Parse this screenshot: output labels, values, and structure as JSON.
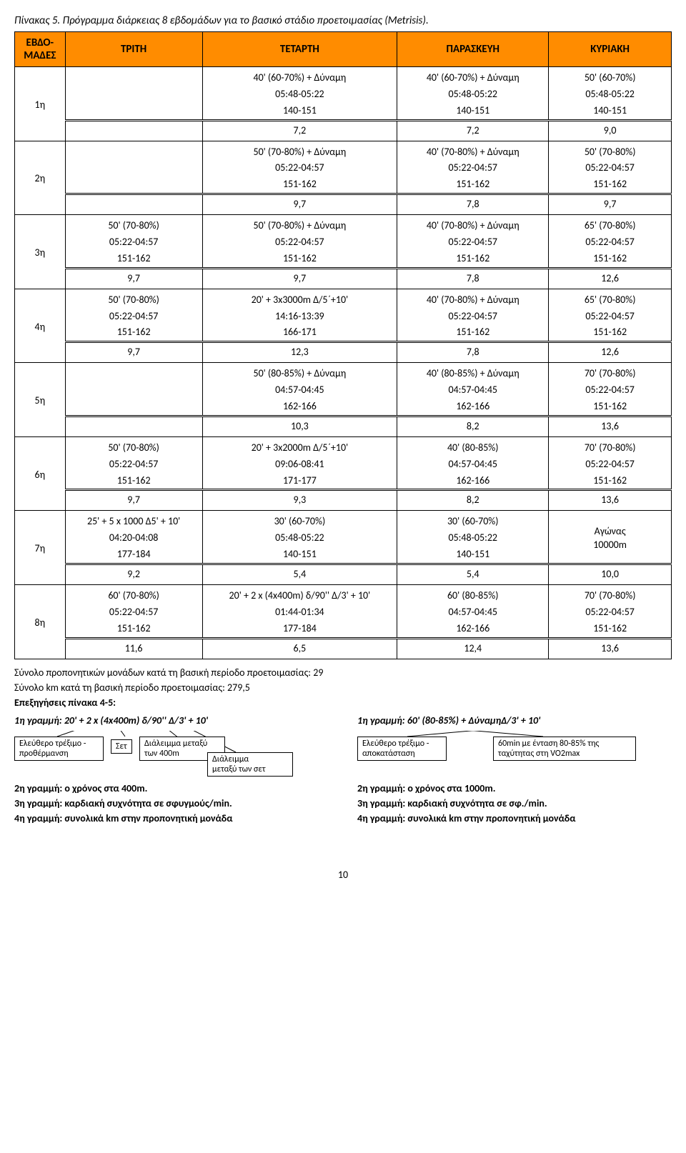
{
  "caption": "Πίνακας 5. Πρόγραμμα διάρκειας 8 εβδομάδων για το βασικό στάδιο προετοιμασίας (Metrisis).",
  "headers": [
    "ΕΒΔΟ-\nΜΑΔΕΣ",
    "ΤΡΙΤΗ",
    "ΤΕΤΑΡΤΗ",
    "ΠΑΡΑΣΚΕΥΗ",
    "ΚΥΡΙΑΚΗ"
  ],
  "colors": {
    "header_bg": "#ff8c00"
  },
  "weeks": [
    {
      "label": "1η",
      "rows": [
        [
          "",
          "40' (60-70%) + Δύναμη",
          "40' (60-70%) + Δύναμη",
          "50' (60-70%)"
        ],
        [
          "",
          "05:48-05:22",
          "05:48-05:22",
          "05:48-05:22"
        ],
        [
          "",
          "140-151",
          "140-151",
          "140-151"
        ]
      ],
      "summary": [
        "",
        "7,2",
        "7,2",
        "9,0"
      ]
    },
    {
      "label": "2η",
      "rows": [
        [
          "",
          "50' (70-80%) + Δύναμη",
          "40' (70-80%) + Δύναμη",
          "50' (70-80%)"
        ],
        [
          "",
          "05:22-04:57",
          "05:22-04:57",
          "05:22-04:57"
        ],
        [
          "",
          "151-162",
          "151-162",
          "151-162"
        ]
      ],
      "summary": [
        "",
        "9,7",
        "7,8",
        "9,7"
      ]
    },
    {
      "label": "3η",
      "rows": [
        [
          "50' (70-80%)",
          "50' (70-80%) + Δύναμη",
          "40' (70-80%) + Δύναμη",
          "65' (70-80%)"
        ],
        [
          "05:22-04:57",
          "05:22-04:57",
          "05:22-04:57",
          "05:22-04:57"
        ],
        [
          "151-162",
          "151-162",
          "151-162",
          "151-162"
        ]
      ],
      "summary": [
        "9,7",
        "9,7",
        "7,8",
        "12,6"
      ]
    },
    {
      "label": "4η",
      "rows": [
        [
          "50' (70-80%)",
          "20' + 3x3000m Δ/5΄+10'",
          "40' (70-80%) + Δύναμη",
          "65' (70-80%)"
        ],
        [
          "05:22-04:57",
          "14:16-13:39",
          "05:22-04:57",
          "05:22-04:57"
        ],
        [
          "151-162",
          "166-171",
          "151-162",
          "151-162"
        ]
      ],
      "summary": [
        "9,7",
        "12,3",
        "7,8",
        "12,6"
      ]
    },
    {
      "label": "5η",
      "rows": [
        [
          "",
          "50' (80-85%) + Δύναμη",
          "40' (80-85%) + Δύναμη",
          "70' (70-80%)"
        ],
        [
          "",
          "04:57-04:45",
          "04:57-04:45",
          "05:22-04:57"
        ],
        [
          "",
          "162-166",
          "162-166",
          "151-162"
        ]
      ],
      "summary": [
        "",
        "10,3",
        "8,2",
        "13,6"
      ]
    },
    {
      "label": "6η",
      "rows": [
        [
          "50' (70-80%)",
          "20' + 3x2000m Δ/5΄+10'",
          "40' (80-85%)",
          "70' (70-80%)"
        ],
        [
          "05:22-04:57",
          "09:06-08:41",
          "04:57-04:45",
          "05:22-04:57"
        ],
        [
          "151-162",
          "171-177",
          "162-166",
          "151-162"
        ]
      ],
      "summary": [
        "9,7",
        "9,3",
        "8,2",
        "13,6"
      ]
    },
    {
      "label": "7η",
      "rows": [
        [
          "25' + 5 x 1000 Δ5' + 10'",
          "30' (60-70%)",
          "30' (60-70%)",
          "Αγώνας\n10000m"
        ],
        [
          "04:20-04:08",
          "05:48-05:22",
          "05:48-05:22",
          ""
        ],
        [
          "177-184",
          "140-151",
          "140-151",
          ""
        ]
      ],
      "summary": [
        "9,2",
        "5,4",
        "5,4",
        "10,0"
      ]
    },
    {
      "label": "8η",
      "rows": [
        [
          "60' (70-80%)",
          "20' + 2 x (4x400m) δ/90'' Δ/3' + 10'",
          "60' (80-85%)",
          "70' (70-80%)"
        ],
        [
          "05:22-04:57",
          "01:44-01:34",
          "04:57-04:45",
          "05:22-04:57"
        ],
        [
          "151-162",
          "177-184",
          "162-166",
          "151-162"
        ]
      ],
      "summary": [
        "11,6",
        "6,5",
        "12,4",
        "13,6"
      ]
    }
  ],
  "below": {
    "line1": "Σύνολο προπονητικών μονάδων κατά τη βασική περίοδο προετοιμασίας: 29",
    "line2": "Σύνολο km κατά τη βασική περίοδο προετοιμασίας: 279,5",
    "heading": "Επεξηγήσεις πίνακα 4-5:",
    "left_first": "1η γραμμή: 20' + 2 x (4x400m) δ/90'' Δ/3' + 10'",
    "right_first": "1η γραμμή: 60' (80-85%) + ΔύναμηΔ/3' + 10'",
    "boxes_left": {
      "b1": "Ελεύθερο τρέξιμο -\nπροθέρμανση",
      "b2": "Σετ",
      "b3": "Διάλειμμα μεταξύ\nτων 400m",
      "b4": "Διάλειμμα\nμεταξύ των σετ"
    },
    "boxes_right": {
      "b1": "Ελεύθερο τρέξιμο -\nαποκατάσταση",
      "b2": "60min με ένταση 80-85% της\nταχύτητας στη VO2max"
    },
    "left_lines": [
      "2η γραμμή: ο χρόνος στα 400m.",
      "3η γραμμή: καρδιακή συχνότητα σε σφυγμούς/min.",
      "4η γραμμή: συνολικά km στην προπονητική μονάδα"
    ],
    "right_lines": [
      "2η γραμμή: ο χρόνος στα 1000m.",
      "3η γραμμή: καρδιακή συχνότητα σε σφ./min.",
      "4η γραμμή: συνολικά km στην προπονητική μονάδα"
    ]
  },
  "page_number": "10"
}
